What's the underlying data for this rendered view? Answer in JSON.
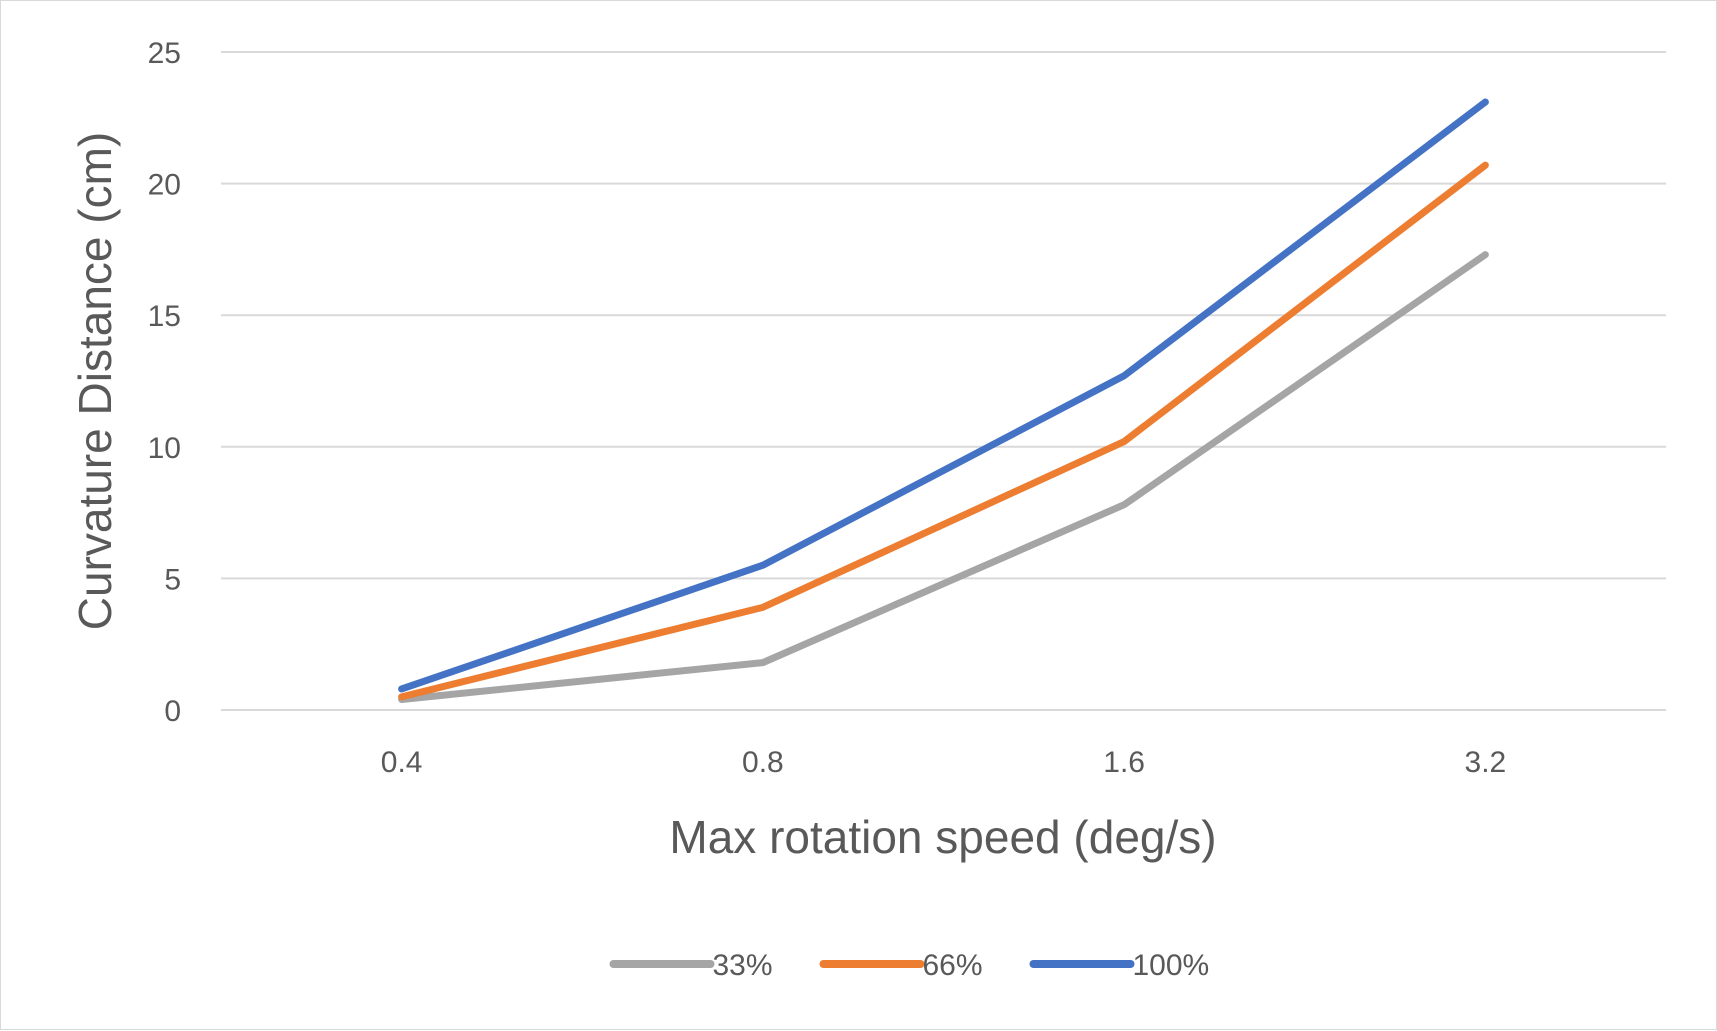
{
  "chart_data": {
    "type": "line",
    "categories": [
      "0.4",
      "0.8",
      "1.6",
      "3.2"
    ],
    "series": [
      {
        "name": "33%",
        "color": "#a5a5a5",
        "values": [
          0.4,
          1.8,
          7.8,
          17.3
        ]
      },
      {
        "name": "66%",
        "color": "#ed7d31",
        "values": [
          0.5,
          3.9,
          10.2,
          20.7
        ]
      },
      {
        "name": "100%",
        "color": "#4472c4",
        "values": [
          0.8,
          5.5,
          12.7,
          23.1
        ]
      }
    ],
    "title": "",
    "xlabel": "Max rotation speed (deg/s)",
    "ylabel": "Curvature Distance (cm)",
    "ylim": [
      0,
      25
    ],
    "yticks": [
      0,
      5,
      10,
      15,
      20,
      25
    ],
    "grid": "horizontal",
    "legend_position": "bottom"
  }
}
